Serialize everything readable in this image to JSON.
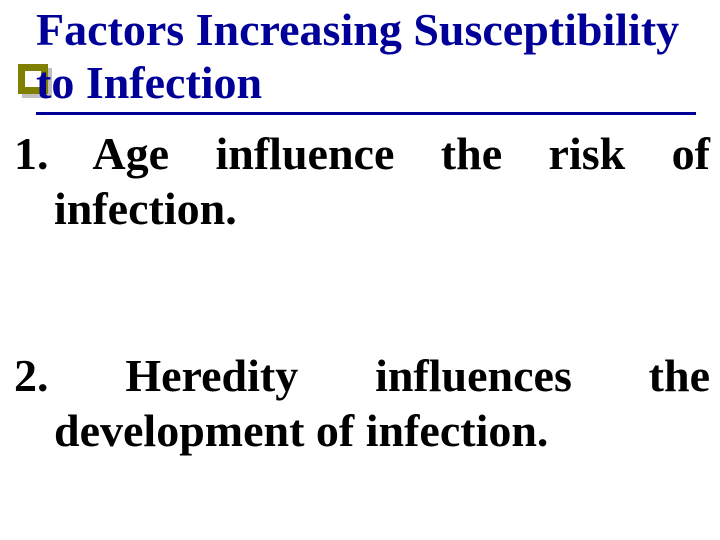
{
  "colors": {
    "title_color": "#000099",
    "body_color": "#000000",
    "bullet_outer": "#7f7f00",
    "bullet_shadow": "#c0c0c0",
    "background": "#ffffff"
  },
  "typography": {
    "font_family": "Times New Roman",
    "title_fontsize": 46,
    "title_fontweight": "bold",
    "body_fontsize": 46,
    "body_fontweight": "bold"
  },
  "title": "Factors Increasing Susceptibility to Infection",
  "items": [
    {
      "number": "1.",
      "text": "Age influence the risk of infection."
    },
    {
      "number": "2.",
      "text": "Heredity influences the development of infection."
    }
  ]
}
